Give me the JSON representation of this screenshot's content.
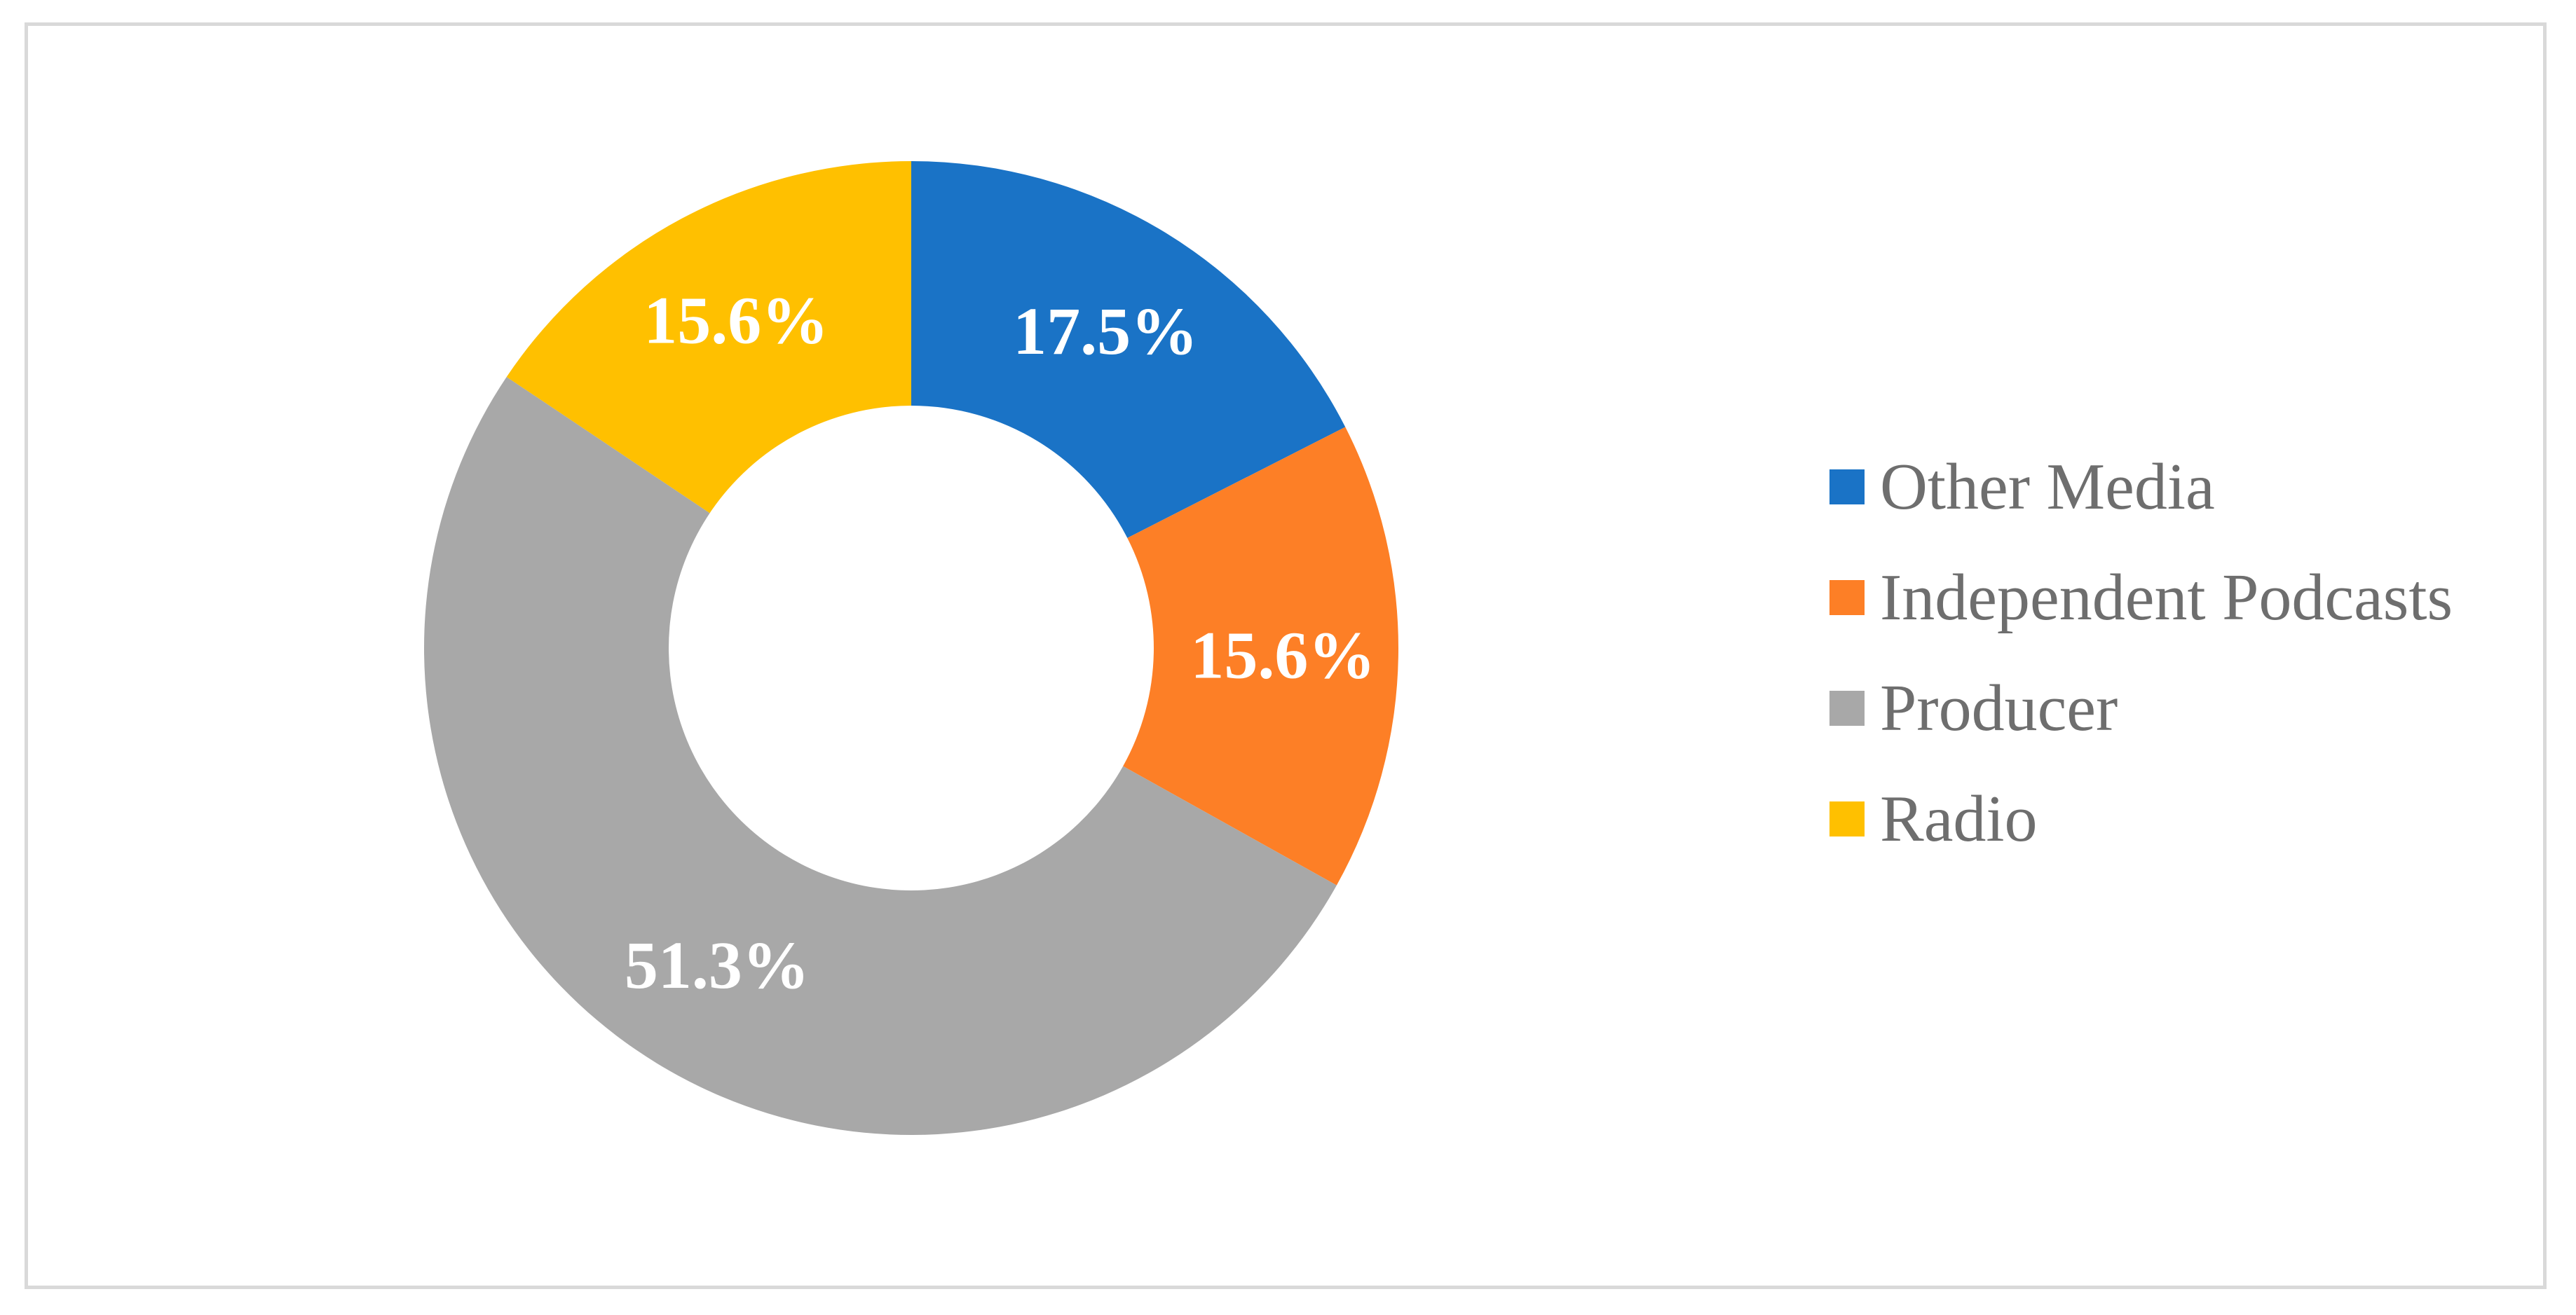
{
  "chart_data": {
    "type": "pie",
    "variant": "donut",
    "title": "",
    "categories": [
      "Other Media",
      "Independent Podcasts",
      "Producer",
      "Radio"
    ],
    "values": [
      17.5,
      15.6,
      51.3,
      15.6
    ],
    "value_labels": [
      "17.5%",
      "15.6%",
      "51.3%",
      "15.6%"
    ],
    "colors": [
      "#1a73c6",
      "#fd7f26",
      "#a8a8a8",
      "#ffc000"
    ],
    "legend": {
      "position": "right",
      "entries": [
        "Other Media",
        "Independent Podcasts",
        "Producer",
        "Radio"
      ]
    }
  }
}
